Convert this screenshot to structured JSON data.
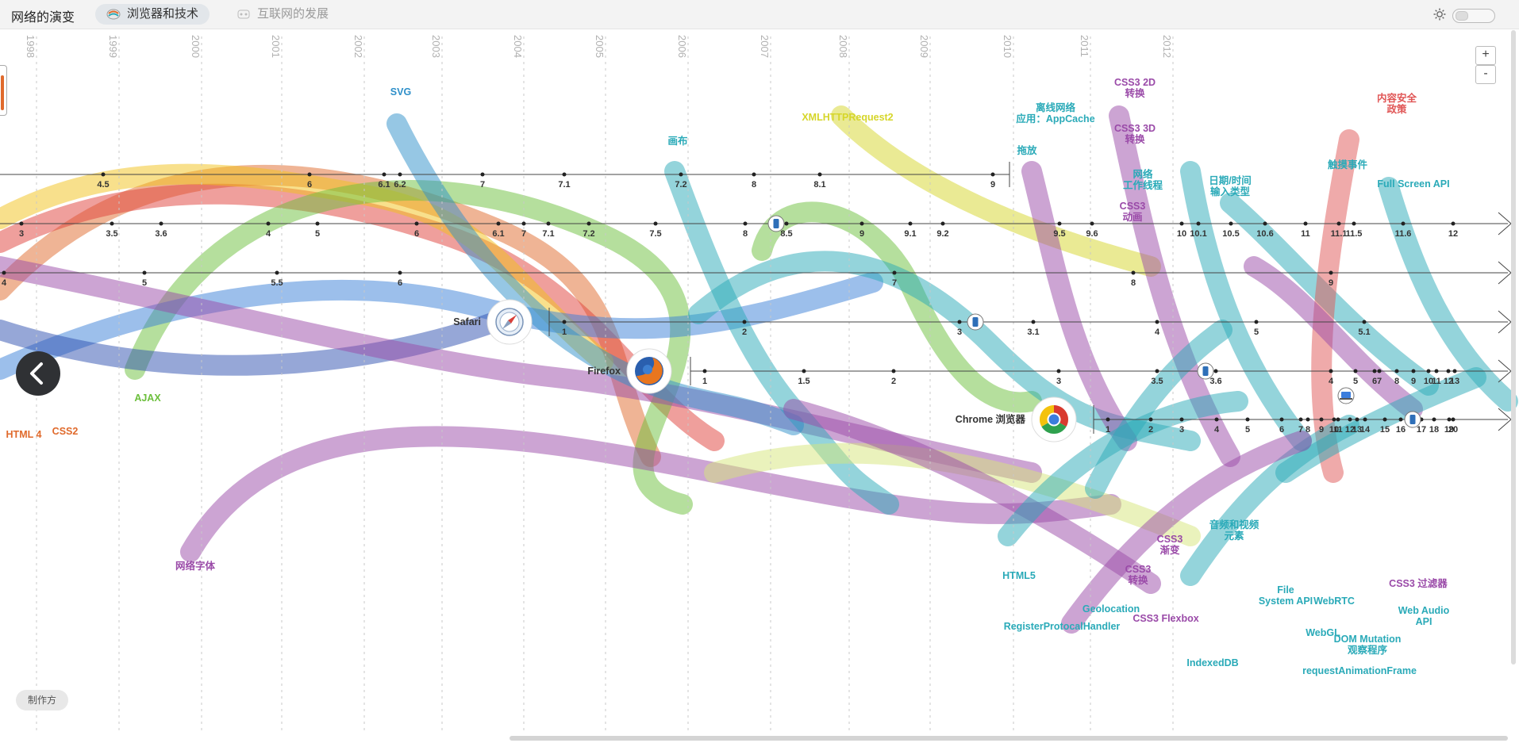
{
  "app": {
    "title": "网络的演变"
  },
  "tabs": [
    {
      "label": "浏览器和技术",
      "active": true
    },
    {
      "label": "互联网的发展",
      "active": false
    }
  ],
  "controls": {
    "zoom_in": "+",
    "zoom_out": "-",
    "credits": "制作方"
  },
  "years": [
    "1998",
    "1999",
    "2000",
    "2001",
    "2002",
    "2003",
    "2004",
    "2005",
    "2006",
    "2007",
    "2008",
    "2009",
    "2010",
    "2011",
    "2012"
  ],
  "browsers": [
    {
      "name": "Safari",
      "icon": "safari-icon"
    },
    {
      "name": "Firefox",
      "icon": "firefox-icon"
    },
    {
      "name": "Chrome 浏览器",
      "icon": "chrome-icon"
    }
  ],
  "versions": {
    "ie": [
      "4.5",
      "6",
      "6.1",
      "6.2",
      "7",
      "7.1",
      "7.2",
      "8",
      "8.1",
      "9"
    ],
    "opera": [
      "3",
      "3.5",
      "3.6",
      "4",
      "5",
      "6",
      "6.1",
      "7",
      "7.1",
      "7.2",
      "7.5",
      "8",
      "8.5",
      "9",
      "9.1",
      "9.2",
      "9.5",
      "9.6",
      "10",
      "10.1",
      "10.5",
      "10.6",
      "11",
      "11.1",
      "11.5",
      "11.6",
      "12"
    ],
    "netscape": [
      "4",
      "5",
      "5.5",
      "6",
      "7",
      "8",
      "9"
    ],
    "safari": [
      "1",
      "2",
      "3",
      "3.1",
      "4",
      "5",
      "5.1"
    ],
    "firefox": [
      "1",
      "1.5",
      "2",
      "3",
      "3.5",
      "3.6",
      "4",
      "5",
      "6",
      "7",
      "8",
      "9",
      "10",
      "11",
      "12",
      "13"
    ],
    "chrome": [
      "1",
      "2",
      "3",
      "4",
      "5",
      "6",
      "7",
      "8",
      "9",
      "10",
      "11",
      "12",
      "13",
      "14",
      "15",
      "16",
      "17",
      "18",
      "19",
      "20"
    ]
  },
  "technologies": [
    {
      "label": "SVG",
      "color": "#2e8fc9"
    },
    {
      "label": "XMLHTTPRequest2",
      "color": "#d6d62a"
    },
    {
      "label": "画布",
      "color": "#2aaab8"
    },
    {
      "label": "离线网络\n应用：AppCache",
      "color": "#2aaab8"
    },
    {
      "label": "拖放",
      "color": "#2aaab8"
    },
    {
      "label": "CSS3 2D\n转换",
      "color": "#9a4aa8"
    },
    {
      "label": "CSS3 3D\n转换",
      "color": "#9a4aa8"
    },
    {
      "label": "网络\n工作线程",
      "color": "#2aaab8"
    },
    {
      "label": "CSS3\n动画",
      "color": "#9a4aa8"
    },
    {
      "label": "日期/时间\n输入类型",
      "color": "#2aaab8"
    },
    {
      "label": "触摸事件",
      "color": "#2aaab8"
    },
    {
      "label": "内容安全\n政策",
      "color": "#e05555"
    },
    {
      "label": "Full Screen API",
      "color": "#2aaab8"
    },
    {
      "label": "AJAX",
      "color": "#6cbf3c"
    },
    {
      "label": "HTML 4",
      "color": "#e06a2c"
    },
    {
      "label": "CSS2",
      "color": "#e06a2c"
    },
    {
      "label": "网络字体",
      "color": "#9a4aa8"
    },
    {
      "label": "HTML5",
      "color": "#2aaab8"
    },
    {
      "label": "RegisterProtocalHandler",
      "color": "#2aaab8"
    },
    {
      "label": "Geolocation",
      "color": "#2aaab8"
    },
    {
      "label": "CSS3\n转换",
      "color": "#9a4aa8"
    },
    {
      "label": "CSS3\n渐变",
      "color": "#9a4aa8"
    },
    {
      "label": "CSS3 Flexbox",
      "color": "#9a4aa8"
    },
    {
      "label": "音频和视频\n元素",
      "color": "#2aaab8"
    },
    {
      "label": "IndexedDB",
      "color": "#2aaab8"
    },
    {
      "label": "File\nSystem API",
      "color": "#2aaab8"
    },
    {
      "label": "WebGL",
      "color": "#2aaab8"
    },
    {
      "label": "WebRTC",
      "color": "#2aaab8"
    },
    {
      "label": "CSS3 过滤器",
      "color": "#9a4aa8"
    },
    {
      "label": "Web Audio\nAPI",
      "color": "#2aaab8"
    },
    {
      "label": "DOM Mutation\n观察程序",
      "color": "#2aaab8"
    },
    {
      "label": "requestAnimationFrame",
      "color": "#2aaab8"
    }
  ]
}
